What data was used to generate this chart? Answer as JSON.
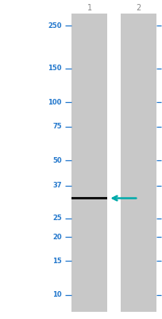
{
  "background_color": "#ffffff",
  "panel_color": "#c8c8c8",
  "band_color": "#111111",
  "arrow_color": "#00aaaa",
  "label_color": "#2277cc",
  "tick_color": "#2277cc",
  "marker_labels": [
    "250",
    "150",
    "100",
    "75",
    "50",
    "37",
    "25",
    "20",
    "15",
    "10"
  ],
  "marker_kda": [
    250,
    150,
    100,
    75,
    50,
    37,
    25,
    20,
    15,
    10
  ],
  "lane_labels": [
    "1",
    "2"
  ],
  "band_lane": 0,
  "band_kda": 31.79,
  "fig_width": 2.05,
  "fig_height": 4.0,
  "dpi": 100,
  "lane_label_color": "#888888"
}
